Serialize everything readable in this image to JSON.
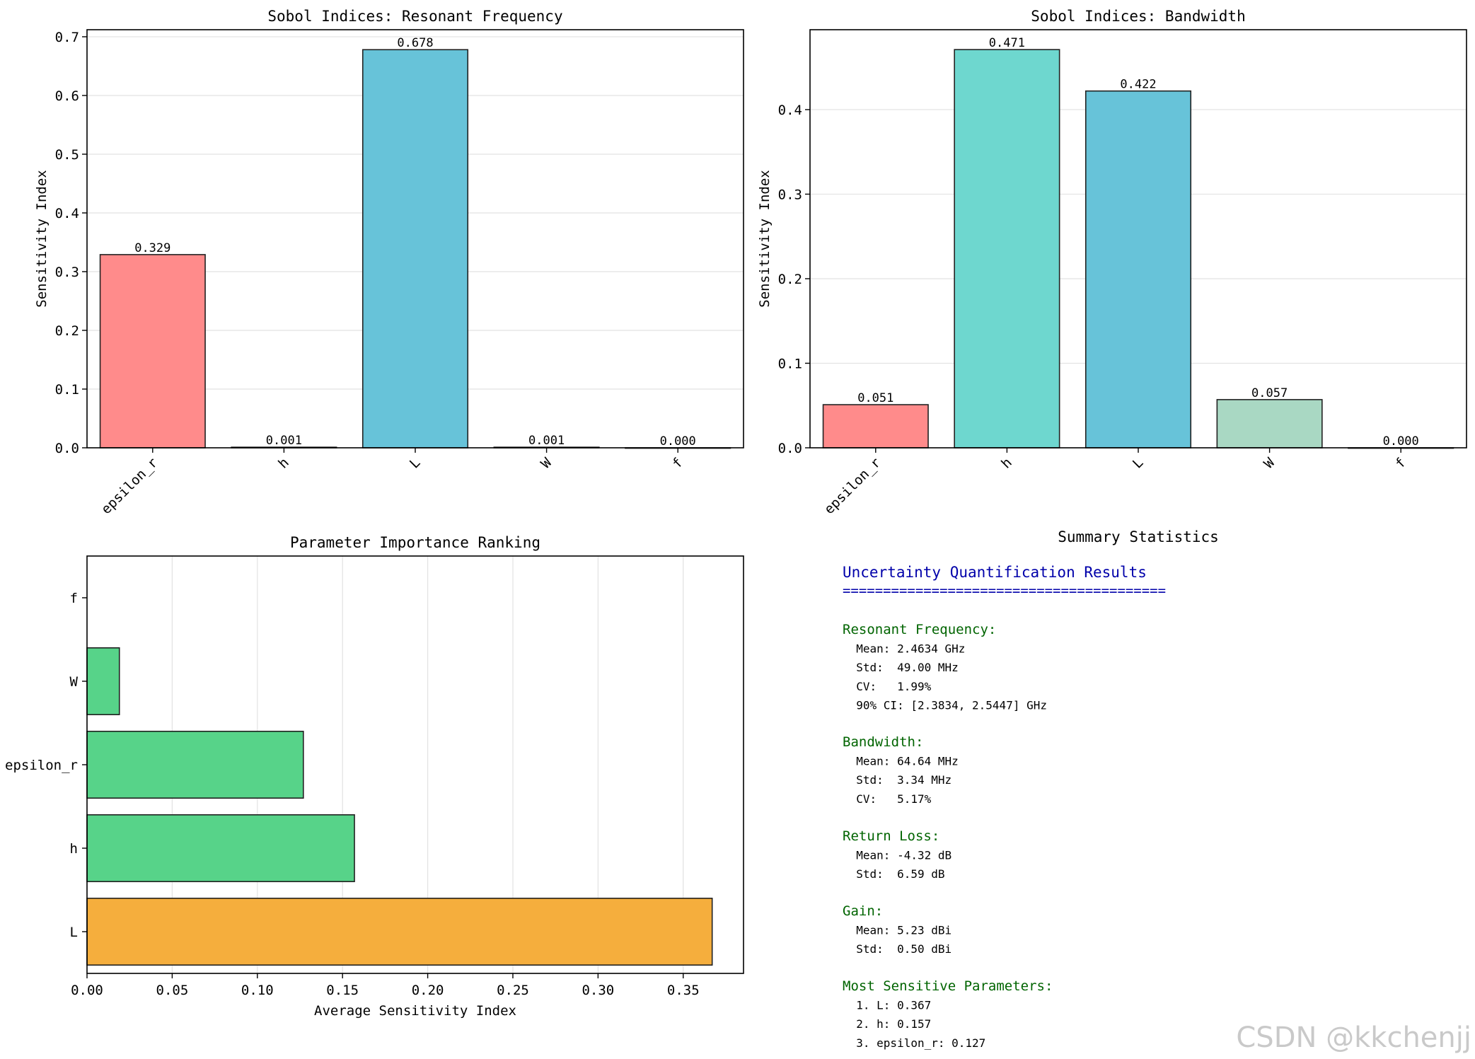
{
  "chart_data": [
    {
      "type": "bar",
      "title": "Sobol Indices: Resonant Frequency",
      "xlabel": "",
      "ylabel": "Sensitivity Index",
      "categories": [
        "epsilon_r",
        "h",
        "L",
        "W",
        "f"
      ],
      "values": [
        0.329,
        0.001,
        0.678,
        0.001,
        0.0
      ],
      "value_labels": [
        "0.329",
        "0.001",
        "0.678",
        "0.001",
        "0.000"
      ],
      "colors": [
        "#ff8b8b",
        "#6ed7cf",
        "#67c3d9",
        "#a9d8c3",
        "#f6e8a6"
      ],
      "ylim": [
        0,
        0.712
      ],
      "yticks": [
        0.0,
        0.1,
        0.2,
        0.3,
        0.4,
        0.5,
        0.6,
        0.7
      ],
      "ytick_labels": [
        "0.0",
        "0.1",
        "0.2",
        "0.3",
        "0.4",
        "0.5",
        "0.6",
        "0.7"
      ],
      "grid": "y"
    },
    {
      "type": "bar",
      "title": "Sobol Indices: Bandwidth",
      "xlabel": "",
      "ylabel": "Sensitivity Index",
      "categories": [
        "epsilon_r",
        "h",
        "L",
        "W",
        "f"
      ],
      "values": [
        0.051,
        0.471,
        0.422,
        0.057,
        0.0
      ],
      "value_labels": [
        "0.051",
        "0.471",
        "0.422",
        "0.057",
        "0.000"
      ],
      "colors": [
        "#ff8b8b",
        "#6ed7cf",
        "#67c3d9",
        "#a9d8c3",
        "#f6e8a6"
      ],
      "ylim": [
        0,
        0.4945
      ],
      "yticks": [
        0.0,
        0.1,
        0.2,
        0.3,
        0.4
      ],
      "ytick_labels": [
        "0.0",
        "0.1",
        "0.2",
        "0.3",
        "0.4"
      ],
      "grid": "y"
    },
    {
      "type": "barh",
      "title": "Parameter Importance Ranking",
      "xlabel": "Average Sensitivity Index",
      "ylabel": "",
      "categories": [
        "L",
        "h",
        "epsilon_r",
        "W",
        "f"
      ],
      "values": [
        0.367,
        0.157,
        0.127,
        0.019,
        0.0
      ],
      "colors": [
        "#f5ae3d",
        "#57d389",
        "#57d389",
        "#57d389",
        "#57d389"
      ],
      "xlim": [
        0,
        0.3854
      ],
      "xticks": [
        0.0,
        0.05,
        0.1,
        0.15,
        0.2,
        0.25,
        0.3,
        0.35
      ],
      "xtick_labels": [
        "0.00",
        "0.05",
        "0.10",
        "0.15",
        "0.20",
        "0.25",
        "0.30",
        "0.35"
      ],
      "grid": "x"
    }
  ],
  "summary": {
    "panel_title": "Summary Statistics",
    "heading": "Uncertainty Quantification Results",
    "rule": "========================================",
    "colors": {
      "heading": "#0000aa",
      "section": "#006400",
      "text": "#000000"
    },
    "sections": [
      {
        "title": "Resonant Frequency:",
        "lines": [
          "  Mean: 2.4634 GHz",
          "  Std:  49.00 MHz",
          "  CV:   1.99%",
          "  90% CI: [2.3834, 2.5447] GHz"
        ]
      },
      {
        "title": "Bandwidth:",
        "lines": [
          "  Mean: 64.64 MHz",
          "  Std:  3.34 MHz",
          "  CV:   5.17%"
        ]
      },
      {
        "title": "Return Loss:",
        "lines": [
          "  Mean: -4.32 dB",
          "  Std:  6.59 dB"
        ]
      },
      {
        "title": "Gain:",
        "lines": [
          "  Mean: 5.23 dBi",
          "  Std:  0.50 dBi"
        ]
      },
      {
        "title": "Most Sensitive Parameters:",
        "lines": [
          "  1. L: 0.367",
          "  2. h: 0.157",
          "  3. epsilon_r: 0.127"
        ]
      }
    ]
  },
  "watermark": "CSDN @kkchenjj"
}
